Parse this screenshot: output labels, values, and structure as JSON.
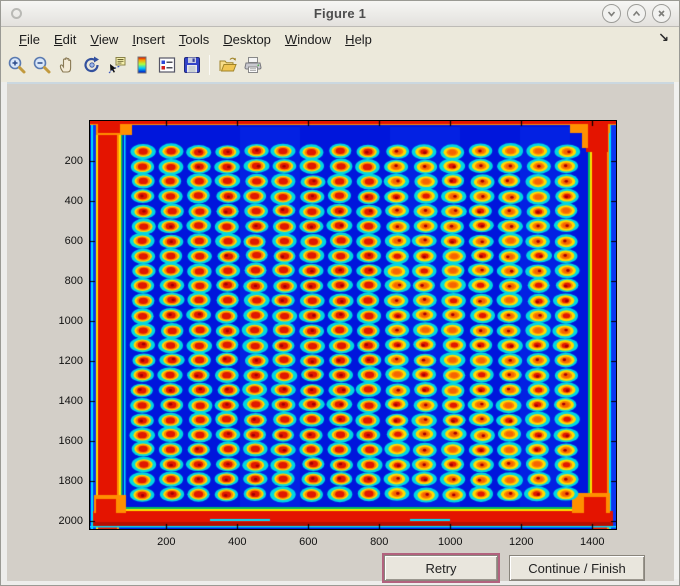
{
  "window": {
    "title": "Figure 1",
    "controls": [
      {
        "name": "minimize",
        "glyph": "chevron-down"
      },
      {
        "name": "maximize",
        "glyph": "chevron-up"
      },
      {
        "name": "close",
        "glyph": "x"
      }
    ]
  },
  "menu_bar": {
    "items": [
      "File",
      "Edit",
      "View",
      "Insert",
      "Tools",
      "Desktop",
      "Window",
      "Help"
    ],
    "dock_arrow": "↘"
  },
  "toolbar": {
    "tools": [
      "zoom-in",
      "zoom-out",
      "pan",
      "rotate-3d",
      "data-cursor",
      "colorbar",
      "legend",
      "save",
      "open",
      "print"
    ]
  },
  "buttons": {
    "retry_label": "Retry",
    "continue_label": "Continue / Finish"
  },
  "chart_data": {
    "type": "heatmap",
    "title": "",
    "colormap": "jet",
    "xlim": [
      -15,
      1467
    ],
    "ylim": [
      2,
      2042
    ],
    "x_ticks": [
      200,
      400,
      600,
      800,
      1000,
      1200,
      1400
    ],
    "y_ticks": [
      200,
      400,
      600,
      800,
      1000,
      1200,
      1400,
      1600,
      1800,
      2000
    ],
    "grid": false,
    "description": "Jet-colormap intensity image of a microarray plate: regular grid of spots (red/orange cores, yellow-orange rings, cyan halos) on deep blue background with saturated red border bands on all plate edges",
    "image": {
      "background_color": "#0016DC",
      "background_light": "#0a36f2",
      "spot_grid": {
        "rows": 24,
        "cols": 16,
        "x0": 134,
        "dx": 79.5,
        "y0": 155,
        "dy": 74.5,
        "spot_rx_data": 31,
        "spot_ry_data": 33
      },
      "spot_colors": {
        "halo": "#00D8E2",
        "ring_outer": "#FFDC00",
        "ring_inner": "#FF8400",
        "core": "#E01800",
        "core_dark": "#A40000",
        "core_right": "#F56400"
      },
      "border_bands": {
        "color": "#E41400",
        "accent": "#FF9000",
        "stripe_cyan": "#00E0FF",
        "stripe_yellow": "#FFE000",
        "stripe_green": "#00C060"
      }
    }
  }
}
